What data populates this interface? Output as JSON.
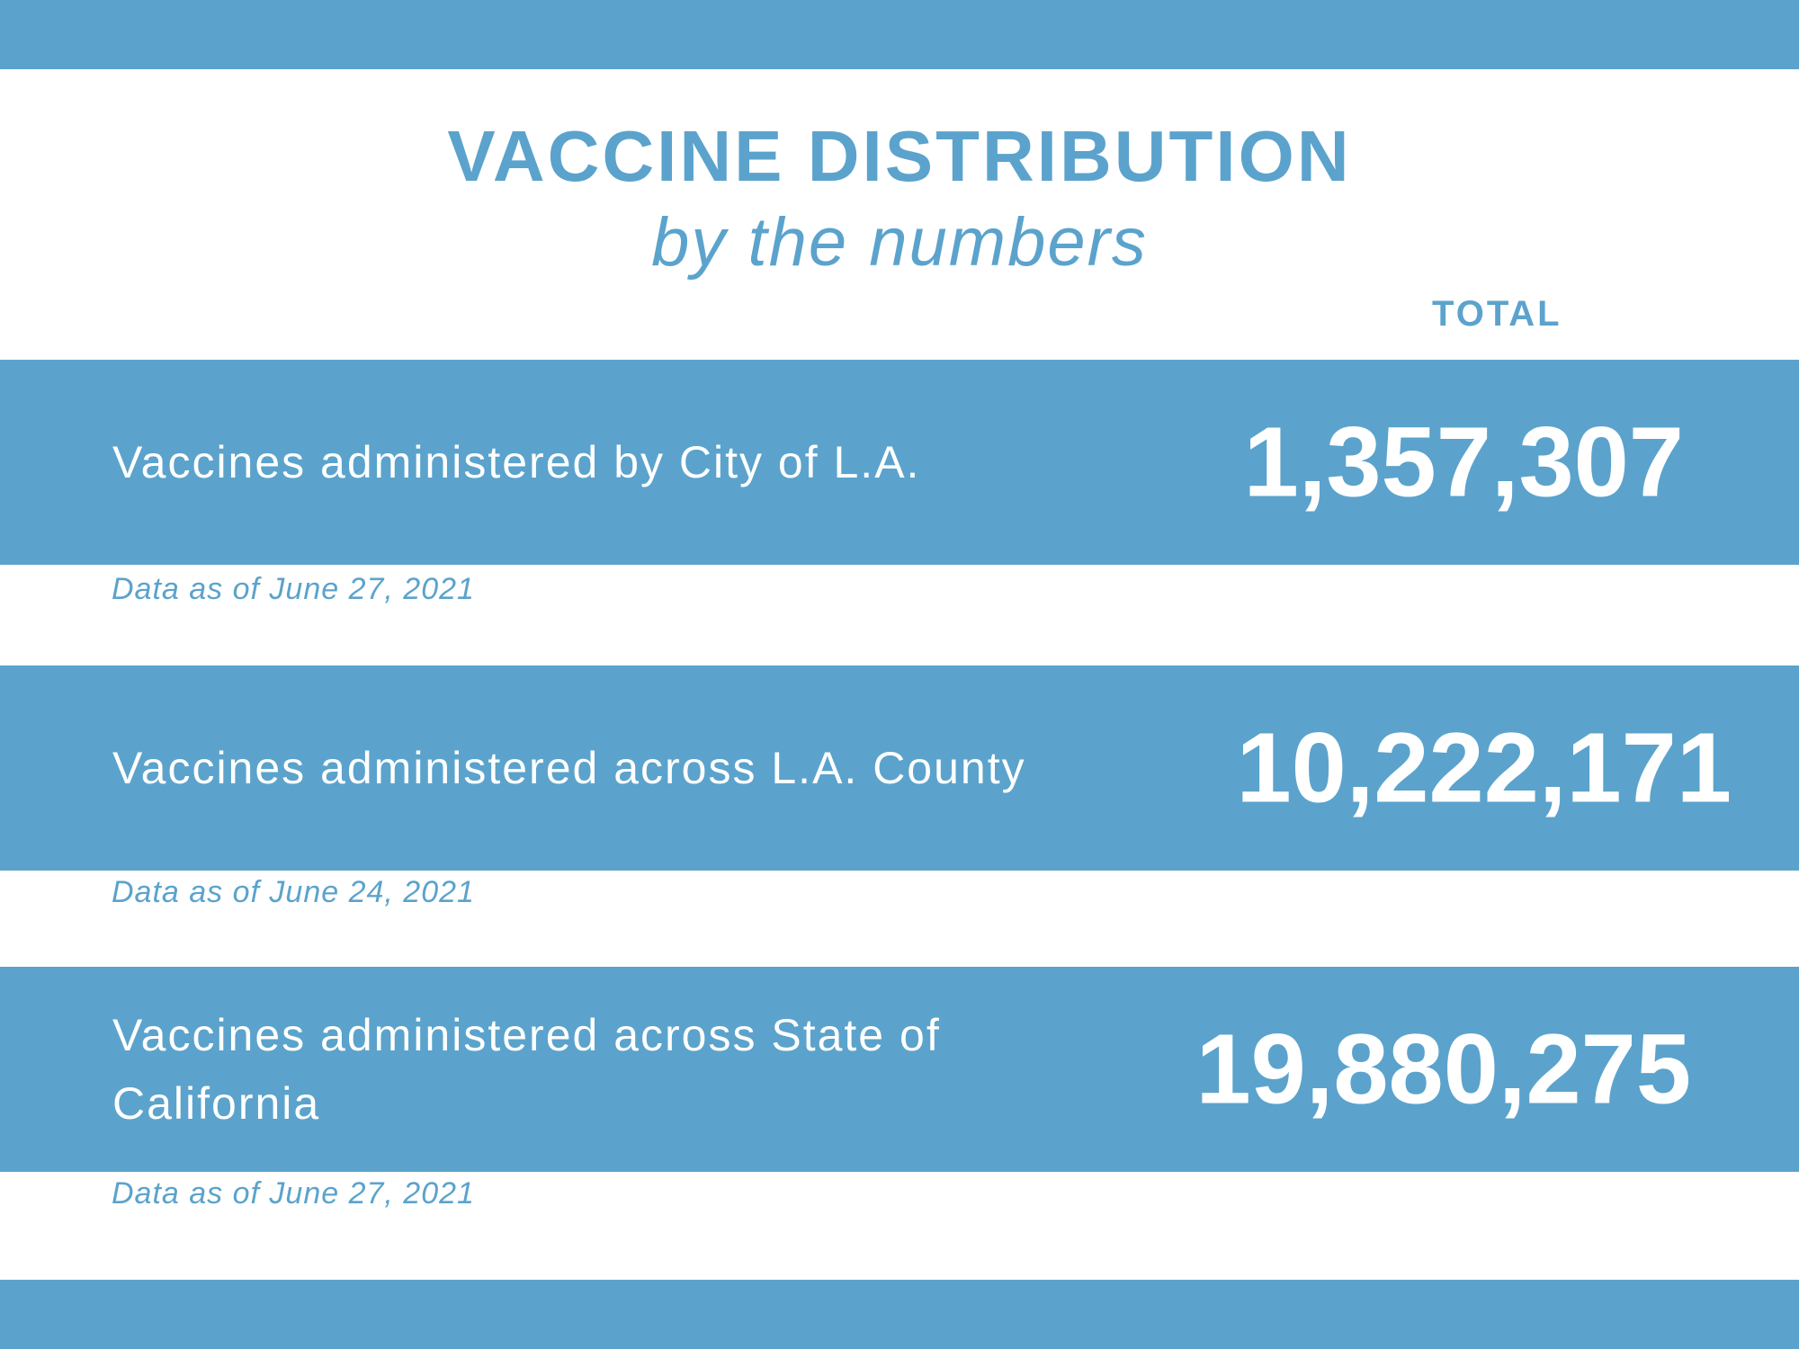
{
  "header": {
    "title": "VACCINE DISTRIBUTION",
    "subtitle": "by the numbers",
    "column_label": "TOTAL"
  },
  "colors": {
    "accent": "#5ba3cc",
    "text_on_accent": "#ffffff"
  },
  "rows": [
    {
      "label": "Vaccines administered by City of L.A.",
      "value": "1,357,307",
      "date": "Data as of June 27, 2021"
    },
    {
      "label": "Vaccines administered across L.A. County",
      "value": "10,222,171",
      "date": "Data as of June 24, 2021"
    },
    {
      "label": "Vaccines administered across State of California",
      "value": "19,880,275",
      "date": "Data as of June 27, 2021"
    }
  ]
}
